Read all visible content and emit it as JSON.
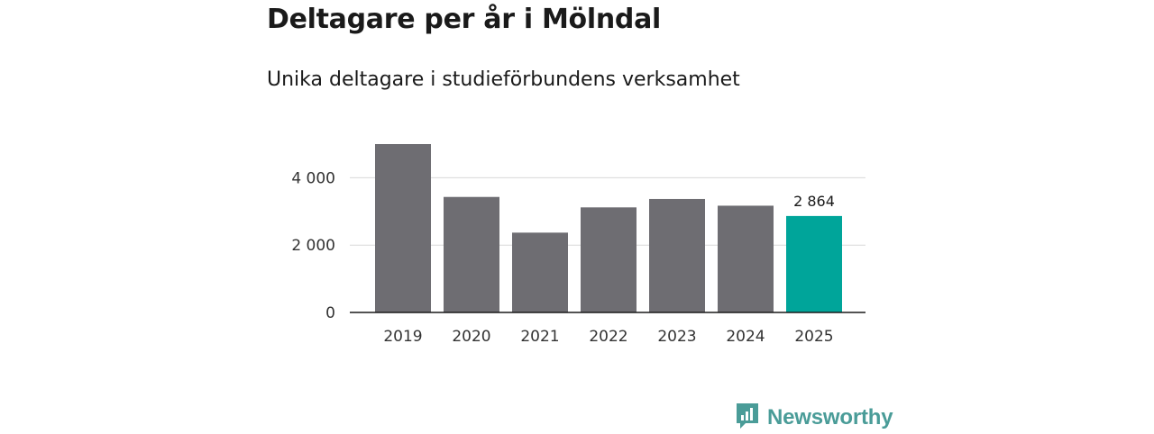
{
  "chart_data": {
    "type": "bar",
    "title": "Deltagare per år i Mölndal",
    "subtitle": "Unika deltagare i studieförbundens verksamhet",
    "categories": [
      "2019",
      "2020",
      "2021",
      "2022",
      "2023",
      "2024",
      "2025"
    ],
    "values": [
      5000,
      3430,
      2370,
      3120,
      3370,
      3170,
      2864
    ],
    "highlight_index": 6,
    "data_labels": [
      {
        "index": 6,
        "text": "2 864"
      }
    ],
    "yticks": [
      {
        "value": 0,
        "label": "0"
      },
      {
        "value": 2000,
        "label": "2 000"
      },
      {
        "value": 4000,
        "label": "4 000"
      }
    ],
    "ylim": [
      0,
      5000
    ],
    "xlabel": "",
    "ylabel": "",
    "grid": true,
    "colors": {
      "bar": "#6e6d72",
      "highlight": "#00a59a",
      "grid": "#d9d9d9",
      "axis": "#1a1a1a"
    }
  },
  "brand": {
    "name": "Newsworthy",
    "logo_icon": "newsworthy-logo-icon",
    "color": "#4a9c98"
  }
}
